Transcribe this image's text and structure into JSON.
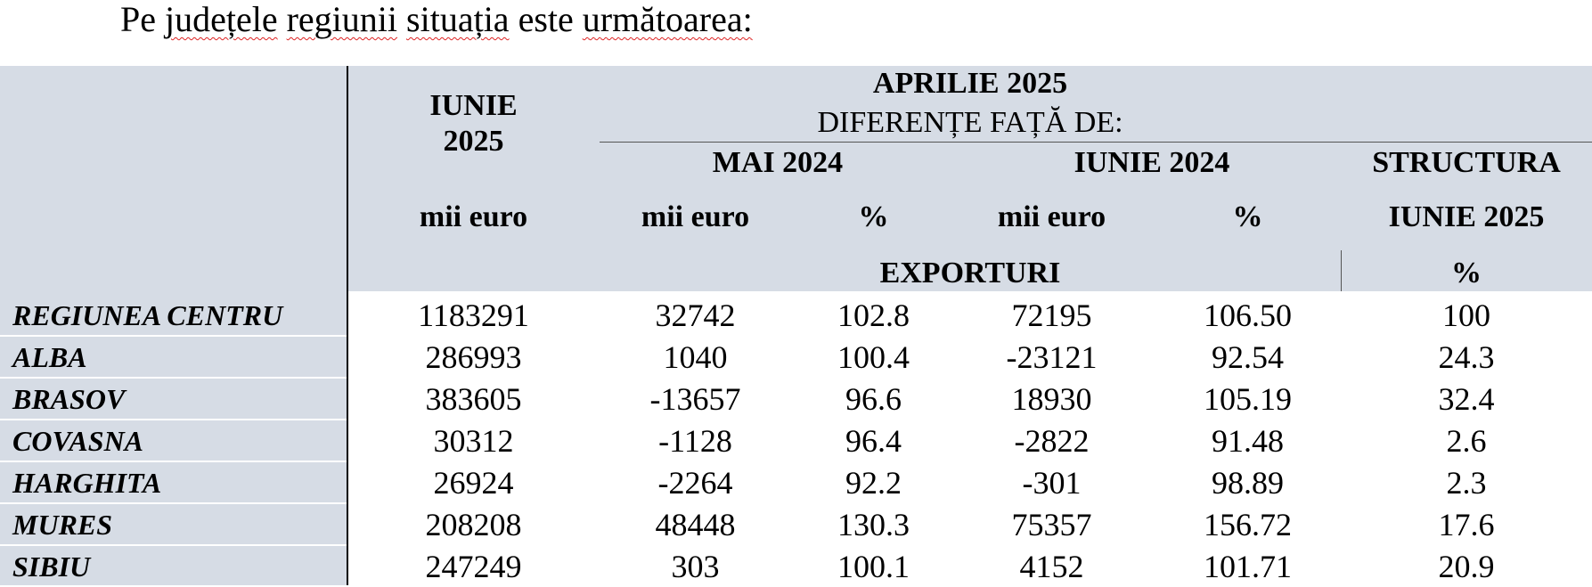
{
  "intro": {
    "w1": "Pe",
    "w2": "județele",
    "w3": "regiunii",
    "w4": "situația",
    "w5": "este",
    "w6": "următoarea:"
  },
  "header": {
    "col_iunie_line1": "IUNIE",
    "col_iunie_line2": "2025",
    "group_title": "APRILIE 2025",
    "group_subtitle": "DIFERENȚE FAȚĂ DE:",
    "mai_2024": "MAI 2024",
    "iunie_2024": "IUNIE 2024",
    "structura": "STRUCTURA",
    "structura_sub": "IUNIE 2025",
    "unit_mii_euro": "mii euro",
    "unit_pct": "%",
    "exporturi": "EXPORTURI",
    "structura_unit": "%"
  },
  "rows": [
    {
      "name": "REGIUNEA CENTRU",
      "iunie2025": "1183291",
      "mai_mii": "32742",
      "mai_pct": "102.8",
      "iun_mii": "72195",
      "iun_pct": "106.50",
      "structura": "100"
    },
    {
      "name": "ALBA",
      "iunie2025": "286993",
      "mai_mii": "1040",
      "mai_pct": "100.4",
      "iun_mii": "-23121",
      "iun_pct": "92.54",
      "structura": "24.3"
    },
    {
      "name": "BRASOV",
      "iunie2025": "383605",
      "mai_mii": "-13657",
      "mai_pct": "96.6",
      "iun_mii": "18930",
      "iun_pct": "105.19",
      "structura": "32.4"
    },
    {
      "name": "COVASNA",
      "iunie2025": "30312",
      "mai_mii": "-1128",
      "mai_pct": "96.4",
      "iun_mii": "-2822",
      "iun_pct": "91.48",
      "structura": "2.6"
    },
    {
      "name": "HARGHITA",
      "iunie2025": "26924",
      "mai_mii": "-2264",
      "mai_pct": "92.2",
      "iun_mii": "-301",
      "iun_pct": "98.89",
      "structura": "2.3"
    },
    {
      "name": "MURES",
      "iunie2025": "208208",
      "mai_mii": "48448",
      "mai_pct": "130.3",
      "iun_mii": "75357",
      "iun_pct": "156.72",
      "structura": "17.6"
    },
    {
      "name": "SIBIU",
      "iunie2025": "247249",
      "mai_mii": "303",
      "mai_pct": "100.1",
      "iun_mii": "4152",
      "iun_pct": "101.71",
      "structura": "20.9"
    }
  ]
}
